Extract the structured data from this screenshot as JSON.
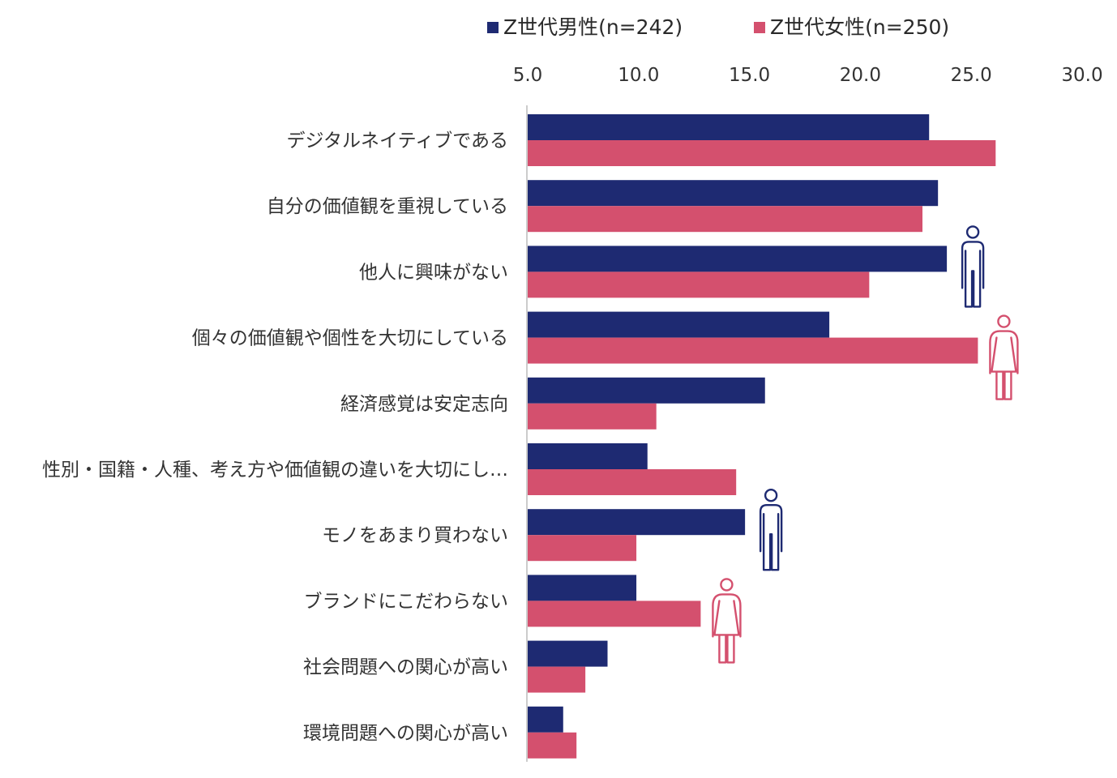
{
  "colors": {
    "male": "#1e2a72",
    "female": "#d4506e",
    "axis": "#cccccc"
  },
  "icons": [
    "male-figure-icon",
    "female-figure-icon"
  ],
  "chart_data": {
    "type": "bar",
    "orientation": "horizontal",
    "xlim": [
      5.0,
      30.0
    ],
    "x_ticks": [
      "5.0",
      "10.0",
      "15.0",
      "20.0",
      "25.0",
      "30.0"
    ],
    "x_tick_values": [
      5,
      10,
      15,
      20,
      25,
      30
    ],
    "legend_position": "top",
    "grid": false,
    "categories": [
      "デジタルネイティブである",
      "自分の価値観を重視している",
      "他人に興味がない",
      "個々の価値観や個性を大切にしている",
      "経済感覚は安定志向",
      "性別・国籍・人種、考え方や価値観の違いを大切にし…",
      "モノをあまり買わない",
      "ブランドにこだわらない",
      "社会問題への関心が高い",
      "環境問題への関心が高い"
    ],
    "series": [
      {
        "name": "Z世代男性(n=242)",
        "color": "#1e2a72",
        "values": [
          23.1,
          23.5,
          23.9,
          18.6,
          15.7,
          10.4,
          14.8,
          9.9,
          8.6,
          6.6
        ]
      },
      {
        "name": "Z世代女性(n=250)",
        "color": "#d4506e",
        "values": [
          26.1,
          22.8,
          20.4,
          25.3,
          10.8,
          14.4,
          9.9,
          12.8,
          7.6,
          7.2
        ]
      }
    ],
    "figure_markers": [
      {
        "icon": "male-figure-icon",
        "category_index": 2,
        "series": 0
      },
      {
        "icon": "female-figure-icon",
        "category_index": 3,
        "series": 1
      },
      {
        "icon": "male-figure-icon",
        "category_index": 6,
        "series": 0
      },
      {
        "icon": "female-figure-icon",
        "category_index": 7,
        "series": 1
      }
    ]
  }
}
